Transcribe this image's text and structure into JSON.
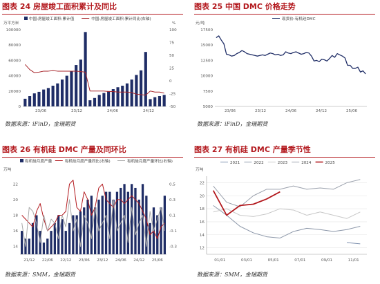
{
  "charts": [
    {
      "id": "c24",
      "title": "图表 24 房屋竣工面积累计及同比",
      "source": "数据来源：iFinD，金瑞期货",
      "chart_data": {
        "type": "bar",
        "unit_left": "万平方米",
        "unit_right": "%",
        "ylim": [
          0,
          100000
        ],
        "yticks": [
          0,
          20000,
          40000,
          60000,
          80000,
          100000
        ],
        "y2lim": [
          -50,
          100
        ],
        "y2ticks": [
          -50,
          -25,
          0,
          25,
          50,
          75,
          100
        ],
        "xticks": [
          "23/06",
          "23/12",
          "24/06",
          "24/12"
        ],
        "series": [
          {
            "name": "中国:房屋竣工面积:累计值",
            "kind": "bar",
            "color": "#1f2d66",
            "values": [
              10000,
              13500,
              17000,
              19000,
              22000,
              24000,
              27000,
              30000,
              35000,
              40000,
              46000,
              54000,
              61000,
              97000,
              8000,
              11000,
              15000,
              17500,
              20000,
              22500,
              25000,
              27000,
              30000,
              35000,
              41000,
              47000,
              71000,
              9500,
              12000,
              13500,
              15000
            ]
          },
          {
            "name": "中国:房屋竣工面积:累计同比(右轴)",
            "kind": "line",
            "axis": "right",
            "color": "#a8262b",
            "values": [
              32,
              22,
              16,
              17,
              19,
              19,
              20,
              19,
              19,
              19,
              19,
              19,
              18,
              17,
              -20,
              -20,
              -20,
              -20,
              -21,
              -21,
              -22,
              -22,
              -22,
              -23,
              -26,
              -27,
              -28,
              -20,
              -22,
              -22,
              -24
            ]
          }
        ]
      }
    },
    {
      "id": "c25",
      "title": "图表 25 中国 DMC 价格走势",
      "source": "数据来源：iFinD，金瑞期货",
      "chart_data": {
        "type": "line",
        "unit_left": "元/吨",
        "ylim": [
          5000,
          17500
        ],
        "yticks": [
          5000,
          7500,
          10000,
          12500,
          15000,
          17500
        ],
        "xticks": [
          "23/06",
          "23/12",
          "24/06",
          "24/12",
          "25/06"
        ],
        "series": [
          {
            "name": "现货价:有机硅DMC",
            "kind": "line",
            "color": "#1f2d66",
            "values": [
              16200,
              16500,
              15800,
              15200,
              13500,
              13400,
              13200,
              13300,
              13600,
              13800,
              14100,
              13900,
              13600,
              13500,
              13400,
              13300,
              13200,
              13300,
              13400,
              13300,
              13500,
              13700,
              13600,
              13400,
              13500,
              13300,
              13400,
              13900,
              13700,
              13600,
              13800,
              13900,
              13700,
              13500,
              13600,
              13800,
              13700,
              13200,
              12400,
              12500,
              12300,
              12700,
              12600,
              12400,
              12800,
              13300,
              13000,
              13600,
              13400,
              13200,
              12900,
              11700,
              11700,
              11200,
              11200,
              11400,
              10600,
              10800,
              10300
            ]
          }
        ]
      }
    },
    {
      "id": "c26",
      "title": "图表 26 有机硅 DMC 产量及同环比",
      "source": "数据来源：SMM，金瑞期货",
      "chart_data": {
        "type": "bar",
        "unit_left": "万吨",
        "ylim": [
          13,
          23
        ],
        "yticks": [
          14,
          16,
          18,
          20,
          22
        ],
        "y2lim": [
          -0.4,
          0.6
        ],
        "y2ticks": [
          -0.3,
          -0.1,
          0.1,
          0.3,
          0.5
        ],
        "xticks": [
          "21/12",
          "22/06",
          "22/12",
          "23/06",
          "23/12",
          "24/06",
          "24/12",
          "25/06"
        ],
        "series": [
          {
            "name": "有机硅月度产量",
            "kind": "bar",
            "color": "#1f2d66",
            "values": [
              16,
              15,
              15,
              17,
              18,
              16,
              14.5,
              15,
              16,
              17,
              18,
              17.5,
              16,
              17,
              18,
              18,
              18.5,
              19,
              20,
              20.5,
              19,
              20,
              20.5,
              21,
              21,
              20,
              21,
              21.5,
              22,
              21,
              22,
              21.5,
              20,
              22,
              20.5,
              17,
              19,
              18,
              19,
              20.5
            ]
          },
          {
            "name": "有机硅月度产量同比(右轴)",
            "kind": "line",
            "axis": "right",
            "color": "#b3191e",
            "values": [
              0.1,
              0.05,
              0.0,
              -0.05,
              0.15,
              0.25,
              0.05,
              -0.1,
              -0.05,
              0.0,
              0.1,
              0.1,
              0.15,
              0.5,
              0.55,
              0.2,
              0.15,
              0.4,
              0.3,
              0.1,
              0.2,
              0.45,
              0.5,
              0.3,
              0.25,
              0.2,
              0.3,
              0.3,
              0.25,
              0.3,
              0.35,
              0.3,
              0.25,
              0.15,
              0.05,
              -0.15,
              -0.1,
              -0.2,
              -0.05,
              0.0
            ]
          },
          {
            "name": "有机硅月度产量环比(右轴)",
            "kind": "line",
            "axis": "right",
            "color": "#a8a8a8",
            "values": [
              0.0,
              -0.3,
              0.2,
              0.15,
              0.0,
              -0.25,
              0.1,
              -0.1,
              0.05,
              0.0,
              -0.2,
              0.1,
              -0.05,
              0.3,
              -0.1,
              0.05,
              -0.3,
              0.1,
              0.0,
              -0.2,
              0.2,
              -0.1,
              0.0,
              0.1,
              -0.2,
              0.3,
              -0.1,
              0.0,
              0.1,
              -0.25,
              0.2,
              -0.15,
              0.0,
              0.1,
              -0.3,
              0.15,
              -0.1,
              0.05,
              0.2,
              -0.1
            ]
          }
        ]
      }
    },
    {
      "id": "c27",
      "title": "图表 27 有机硅 DMC 产量季节性",
      "source": "数据来源：SMM，金瑞期货",
      "chart_data": {
        "type": "line",
        "unit_left": "万吨",
        "ylim": [
          11,
          23
        ],
        "yticks": [
          12,
          14,
          16,
          18,
          20,
          22
        ],
        "xticks": [
          "01/01",
          "03/01",
          "05/01",
          "07/01",
          "09/01",
          "11/01"
        ],
        "series": [
          {
            "name": "2021",
            "kind": "line",
            "color": "#7c8fad",
            "values": [
              null,
              null,
              null,
              null,
              null,
              null,
              null,
              null,
              null,
              null,
              12.8,
              12.6
            ]
          },
          {
            "name": "2022",
            "kind": "line",
            "color": "#8b96a8",
            "values": [
              18.5,
              17.0,
              15.3,
              14.3,
              13.7,
              13.5,
              14.5,
              15.0,
              14.8,
              14.5,
              14.8,
              15.3
            ]
          },
          {
            "name": "2023",
            "kind": "line",
            "color": "#c8c8c8",
            "values": [
              17.5,
              18.0,
              17.0,
              16.8,
              17.2,
              18.0,
              17.8,
              17.0,
              17.5,
              17.0,
              16.5,
              17.5
            ]
          },
          {
            "name": "2024",
            "kind": "line",
            "color": "#9aa0ac",
            "values": [
              21.5,
              19.0,
              18.3,
              20.0,
              21.0,
              21.0,
              21.5,
              21.0,
              21.2,
              21.0,
              22.0,
              22.5
            ]
          },
          {
            "name": "2025",
            "kind": "line",
            "color": "#b3191e",
            "values": [
              20.8,
              17.0,
              18.5,
              18.7,
              19.5,
              20.6,
              null,
              null,
              null,
              null,
              null,
              null
            ]
          }
        ]
      }
    }
  ]
}
